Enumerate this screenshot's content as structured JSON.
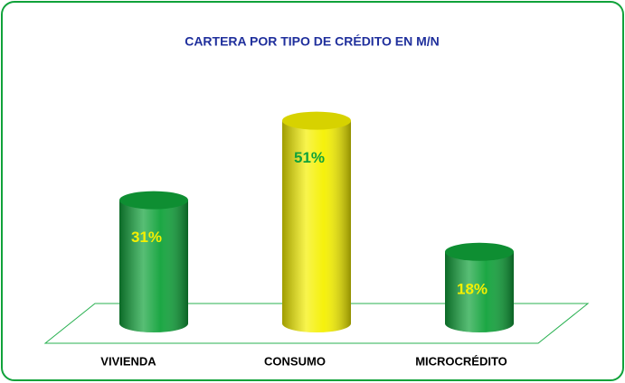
{
  "chart_data": {
    "type": "bar",
    "title": "CARTERA POR TIPO DE CRÉDITO EN M/N",
    "categories": [
      "VIVIENDA",
      "CONSUMO",
      "MICROCRÉDITO"
    ],
    "values": [
      31,
      51,
      18
    ],
    "value_labels": [
      "31%",
      "51%",
      "18%"
    ],
    "colors": [
      "#10a23a",
      "#f5f000",
      "#10a23a"
    ]
  }
}
